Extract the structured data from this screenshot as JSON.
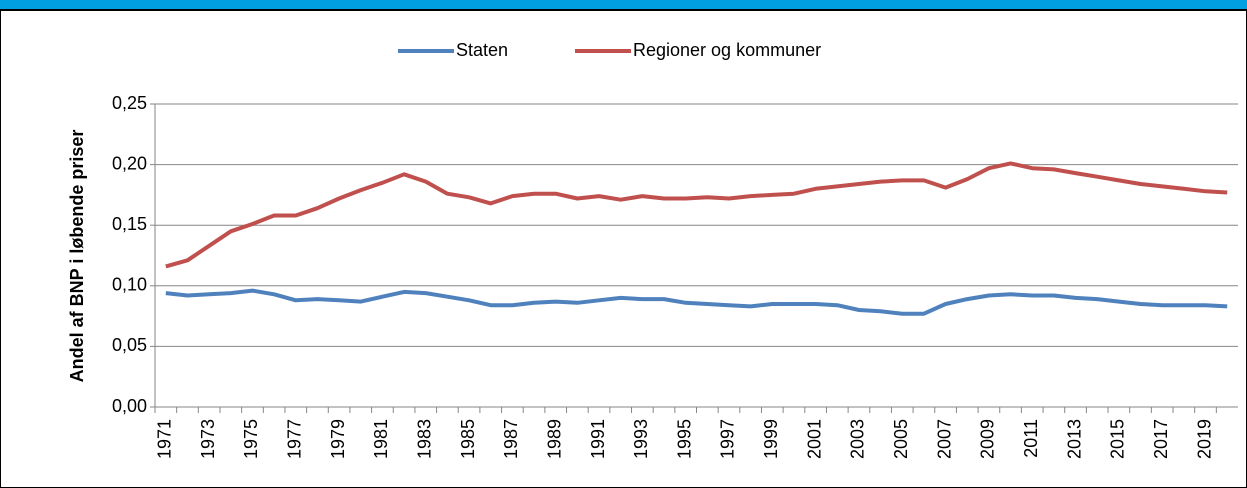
{
  "chart_data": {
    "type": "line",
    "ylabel": "Andel af BNP i løbende priser",
    "categories": [
      "1971",
      null,
      "1973",
      null,
      "1975",
      null,
      "1977",
      null,
      "1979",
      null,
      "1981",
      null,
      "1983",
      null,
      "1985",
      null,
      "1987",
      null,
      "1989",
      null,
      "1991",
      null,
      "1993",
      null,
      "1995",
      null,
      "1997",
      null,
      "1999",
      null,
      "2001",
      null,
      "2003",
      null,
      "2005",
      null,
      "2007",
      null,
      "2009",
      null,
      "2011",
      null,
      "2013",
      null,
      "2015",
      null,
      "2017",
      null,
      "2019",
      null
    ],
    "series": [
      {
        "name": "Staten",
        "color": "#4f81bd",
        "values": [
          0.094,
          0.092,
          0.093,
          0.094,
          0.096,
          0.093,
          0.088,
          0.089,
          0.088,
          0.087,
          0.091,
          0.095,
          0.094,
          0.091,
          0.088,
          0.084,
          0.084,
          0.086,
          0.087,
          0.086,
          0.088,
          0.09,
          0.089,
          0.089,
          0.086,
          0.085,
          0.084,
          0.083,
          0.085,
          0.085,
          0.085,
          0.084,
          0.08,
          0.079,
          0.077,
          0.077,
          0.085,
          0.089,
          0.092,
          0.093,
          0.092,
          0.092,
          0.09,
          0.089,
          0.087,
          0.085,
          0.084,
          0.084,
          0.084,
          0.083
        ]
      },
      {
        "name": "Regioner og kommuner",
        "color": "#c0504d",
        "values": [
          0.116,
          0.121,
          0.133,
          0.145,
          0.151,
          0.158,
          0.158,
          0.164,
          0.172,
          0.179,
          0.185,
          0.192,
          0.186,
          0.176,
          0.173,
          0.168,
          0.174,
          0.176,
          0.176,
          0.172,
          0.174,
          0.171,
          0.174,
          0.172,
          0.172,
          0.173,
          0.172,
          0.174,
          0.175,
          0.176,
          0.18,
          0.182,
          0.184,
          0.186,
          0.187,
          0.187,
          0.181,
          0.188,
          0.197,
          0.201,
          0.197,
          0.196,
          0.193,
          0.19,
          0.187,
          0.184,
          0.182,
          0.18,
          0.178,
          0.177
        ]
      }
    ],
    "ylim": [
      0,
      0.25
    ],
    "yticks": [
      {
        "value": 0,
        "label": "0,00"
      },
      {
        "value": 0.05,
        "label": "0,05"
      },
      {
        "value": 0.1,
        "label": "0,10"
      },
      {
        "value": 0.15,
        "label": "0,15"
      },
      {
        "value": 0.2,
        "label": "0,20"
      },
      {
        "value": 0.25,
        "label": "0,25"
      }
    ],
    "grid": true,
    "legend": "top"
  }
}
